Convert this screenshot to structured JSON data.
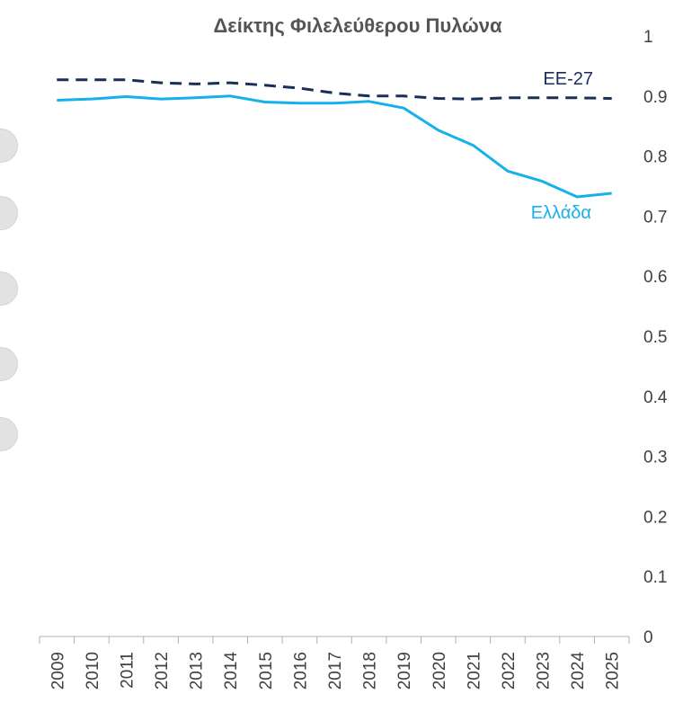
{
  "chart_data": {
    "type": "line",
    "title": "Δείκτης Φιλελεύθερου Πυλώνα",
    "x": [
      "2009",
      "2010",
      "2011",
      "2012",
      "2013",
      "2014",
      "2015",
      "2016",
      "2017",
      "2018",
      "2019",
      "2020",
      "2021",
      "2022",
      "2023",
      "2024",
      "2025"
    ],
    "series": [
      {
        "name": "ΕΕ-27",
        "color": "#1a2e5a",
        "style": "dashed",
        "values": [
          0.927,
          0.927,
          0.927,
          0.922,
          0.92,
          0.922,
          0.918,
          0.913,
          0.905,
          0.9,
          0.9,
          0.896,
          0.895,
          0.897,
          0.897,
          0.897,
          0.896
        ]
      },
      {
        "name": "Ελλάδα",
        "color": "#15b1eb",
        "style": "solid",
        "values": [
          0.893,
          0.895,
          0.899,
          0.895,
          0.897,
          0.9,
          0.89,
          0.888,
          0.888,
          0.891,
          0.88,
          0.843,
          0.818,
          0.775,
          0.758,
          0.732,
          0.738
        ]
      }
    ],
    "yticks": [
      "0",
      "0.1",
      "0.2",
      "0.3",
      "0.4",
      "0.5",
      "0.6",
      "0.7",
      "0.8",
      "0.9",
      "1"
    ],
    "ylim": [
      0,
      1
    ],
    "y_axis_position": "right",
    "grid": false,
    "legend": "inline labels"
  },
  "side_buttons": [
    "circle",
    "circle",
    "circle",
    "circle",
    "circle"
  ]
}
